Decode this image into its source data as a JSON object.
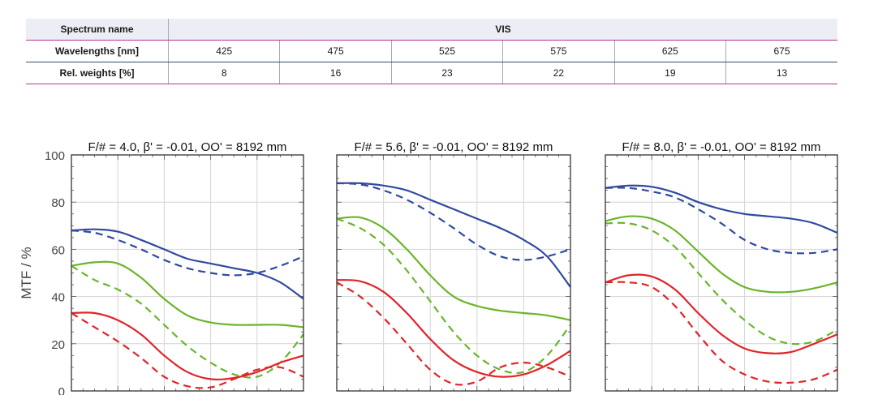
{
  "table": {
    "spectrum_label": "Spectrum name",
    "spectrum_value": "VIS",
    "wavelengths_label": "Wavelengths [nm]",
    "wavelengths": [
      "425",
      "475",
      "525",
      "575",
      "625",
      "675"
    ],
    "weights_label": "Rel. weights [%]",
    "weights": [
      "8",
      "16",
      "23",
      "22",
      "19",
      "13"
    ]
  },
  "colors": {
    "blue": "#2f4aa0",
    "green": "#6ab52a",
    "red": "#e0242a"
  },
  "chart_data": [
    {
      "type": "line",
      "title": "F/# = 4.0, β' = -0.01, OO' = 8192 mm",
      "ylabel": "MTF / %",
      "ylim": [
        0,
        100
      ],
      "yticks": [
        "0",
        "20",
        "40",
        "60",
        "80",
        "100"
      ],
      "xlim": [
        0,
        1
      ],
      "grid": true,
      "series": [
        {
          "color": "blue",
          "dashed": false,
          "x": [
            0,
            0.1,
            0.2,
            0.3,
            0.4,
            0.5,
            0.6,
            0.7,
            0.8,
            0.9,
            1
          ],
          "values": [
            68,
            68.5,
            67.5,
            64,
            60,
            56,
            54,
            52,
            50,
            46,
            39
          ]
        },
        {
          "color": "blue",
          "dashed": true,
          "x": [
            0,
            0.1,
            0.2,
            0.3,
            0.4,
            0.5,
            0.6,
            0.7,
            0.8,
            0.9,
            1
          ],
          "values": [
            68,
            67,
            64,
            60,
            55.5,
            52,
            50,
            49,
            50,
            53,
            57
          ]
        },
        {
          "color": "green",
          "dashed": false,
          "x": [
            0,
            0.1,
            0.2,
            0.3,
            0.4,
            0.5,
            0.6,
            0.7,
            0.8,
            0.9,
            1
          ],
          "values": [
            53,
            54.5,
            54,
            48,
            39,
            32,
            29,
            28,
            28,
            28,
            27
          ]
        },
        {
          "color": "green",
          "dashed": true,
          "x": [
            0,
            0.1,
            0.2,
            0.3,
            0.4,
            0.5,
            0.6,
            0.7,
            0.8,
            0.9,
            1
          ],
          "values": [
            53,
            47,
            43,
            37,
            28,
            19,
            12,
            7,
            6,
            12,
            24
          ]
        },
        {
          "color": "red",
          "dashed": false,
          "x": [
            0,
            0.1,
            0.2,
            0.3,
            0.4,
            0.5,
            0.6,
            0.7,
            0.8,
            0.9,
            1
          ],
          "values": [
            33,
            33,
            30,
            24,
            15,
            8,
            5,
            5.5,
            8,
            12,
            15
          ]
        },
        {
          "color": "red",
          "dashed": true,
          "x": [
            0,
            0.1,
            0.2,
            0.3,
            0.4,
            0.5,
            0.6,
            0.7,
            0.8,
            0.9,
            1
          ],
          "values": [
            33,
            27,
            21,
            14,
            6,
            2,
            1.5,
            5,
            9,
            10,
            6
          ]
        }
      ]
    },
    {
      "type": "line",
      "title": "F/# = 5.6, β' = -0.01, OO' = 8192 mm",
      "ylim": [
        0,
        100
      ],
      "xlim": [
        0,
        1
      ],
      "grid": true,
      "series": [
        {
          "color": "blue",
          "dashed": false,
          "x": [
            0,
            0.1,
            0.2,
            0.3,
            0.4,
            0.5,
            0.6,
            0.7,
            0.8,
            0.9,
            1
          ],
          "values": [
            88,
            88,
            87,
            85,
            81,
            77,
            73,
            69,
            64,
            57,
            44
          ]
        },
        {
          "color": "blue",
          "dashed": true,
          "x": [
            0,
            0.1,
            0.2,
            0.3,
            0.4,
            0.5,
            0.6,
            0.7,
            0.8,
            0.9,
            1
          ],
          "values": [
            88,
            87.5,
            85,
            81,
            75.5,
            69,
            62,
            57,
            55.5,
            57,
            60
          ]
        },
        {
          "color": "green",
          "dashed": false,
          "x": [
            0,
            0.1,
            0.2,
            0.3,
            0.4,
            0.5,
            0.6,
            0.7,
            0.8,
            0.9,
            1
          ],
          "values": [
            73,
            73.5,
            69,
            60,
            49,
            40,
            36,
            34,
            33,
            32,
            30
          ]
        },
        {
          "color": "green",
          "dashed": true,
          "x": [
            0,
            0.1,
            0.2,
            0.3,
            0.4,
            0.5,
            0.6,
            0.7,
            0.8,
            0.9,
            1
          ],
          "values": [
            73,
            69,
            62,
            51,
            38,
            25,
            15,
            9,
            8,
            15,
            28
          ]
        },
        {
          "color": "red",
          "dashed": false,
          "x": [
            0,
            0.1,
            0.2,
            0.3,
            0.4,
            0.5,
            0.6,
            0.7,
            0.8,
            0.9,
            1
          ],
          "values": [
            47,
            46.5,
            42,
            33,
            22,
            13,
            8,
            6,
            7,
            11,
            17
          ]
        },
        {
          "color": "red",
          "dashed": true,
          "x": [
            0,
            0.1,
            0.2,
            0.3,
            0.4,
            0.5,
            0.6,
            0.7,
            0.8,
            0.9,
            1
          ],
          "values": [
            46,
            40,
            31,
            20,
            9,
            3,
            4,
            10,
            12,
            10,
            6
          ]
        }
      ]
    },
    {
      "type": "line",
      "title": "F/# = 8.0, β' = -0.01, OO' = 8192 mm",
      "ylim": [
        0,
        100
      ],
      "xlim": [
        0,
        1
      ],
      "grid": true,
      "series": [
        {
          "color": "blue",
          "dashed": false,
          "x": [
            0,
            0.1,
            0.2,
            0.3,
            0.4,
            0.5,
            0.6,
            0.7,
            0.8,
            0.9,
            1
          ],
          "values": [
            86,
            87,
            86.5,
            84,
            80,
            77,
            75,
            74,
            73,
            71,
            67
          ]
        },
        {
          "color": "blue",
          "dashed": true,
          "x": [
            0,
            0.1,
            0.2,
            0.3,
            0.4,
            0.5,
            0.6,
            0.7,
            0.8,
            0.9,
            1
          ],
          "values": [
            86,
            86,
            84.5,
            82,
            77,
            71,
            64,
            60,
            58.5,
            58.5,
            60
          ]
        },
        {
          "color": "green",
          "dashed": false,
          "x": [
            0,
            0.1,
            0.2,
            0.3,
            0.4,
            0.5,
            0.6,
            0.7,
            0.8,
            0.9,
            1
          ],
          "values": [
            72,
            74,
            73,
            68,
            59,
            50,
            44,
            42,
            42,
            43.5,
            46
          ]
        },
        {
          "color": "green",
          "dashed": true,
          "x": [
            0,
            0.1,
            0.2,
            0.3,
            0.4,
            0.5,
            0.6,
            0.7,
            0.8,
            0.9,
            1
          ],
          "values": [
            71,
            71,
            68,
            61,
            50,
            39,
            30,
            23,
            20,
            21,
            26
          ]
        },
        {
          "color": "red",
          "dashed": false,
          "x": [
            0,
            0.1,
            0.2,
            0.3,
            0.4,
            0.5,
            0.6,
            0.7,
            0.8,
            0.9,
            1
          ],
          "values": [
            46,
            49,
            48.5,
            43,
            33,
            24,
            18,
            16,
            16.5,
            20,
            24
          ]
        },
        {
          "color": "red",
          "dashed": true,
          "x": [
            0,
            0.1,
            0.2,
            0.3,
            0.4,
            0.5,
            0.6,
            0.7,
            0.8,
            0.9,
            1
          ],
          "values": [
            46,
            46,
            44,
            36,
            24,
            13,
            7,
            4,
            3.5,
            5,
            9
          ]
        }
      ]
    }
  ]
}
